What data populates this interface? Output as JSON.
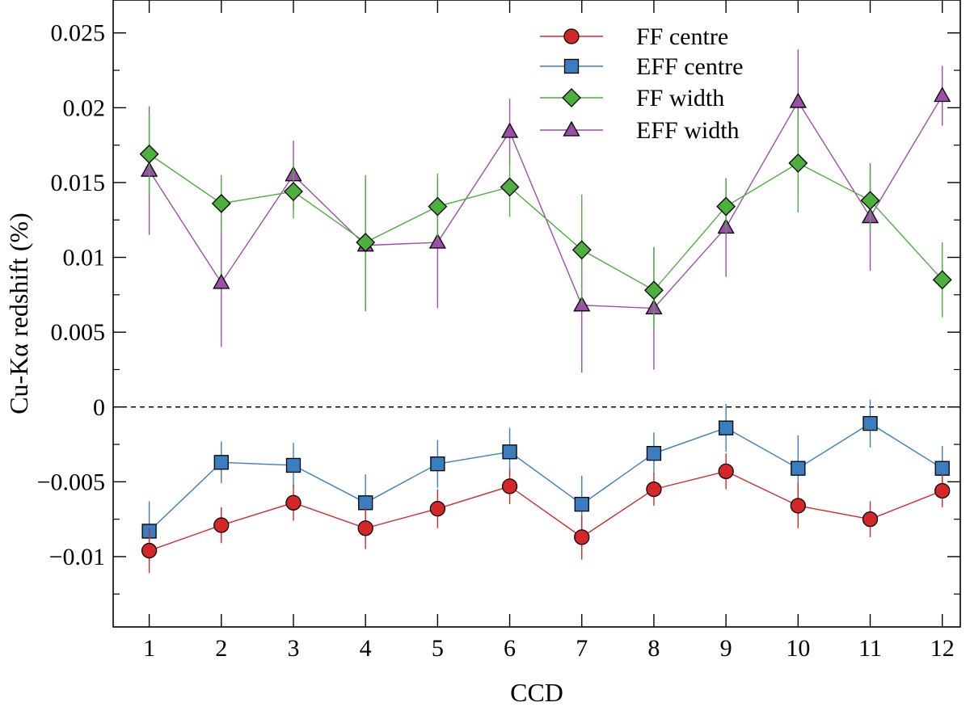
{
  "chart_data": {
    "type": "scatter",
    "title": "",
    "xlabel": "CCD",
    "ylabel": "Cu-Kα redshift (%)",
    "xlim": [
      0.5,
      12.25
    ],
    "ylim": [
      -0.0147,
      0.0272
    ],
    "x": [
      1,
      2,
      3,
      4,
      5,
      6,
      7,
      8,
      9,
      10,
      11,
      12
    ],
    "x_tick_labels": [
      "1",
      "2",
      "3",
      "4",
      "5",
      "6",
      "7",
      "8",
      "9",
      "10",
      "11",
      "12"
    ],
    "y_ticks": [
      -0.01,
      -0.005,
      0,
      0.005,
      0.01,
      0.015,
      0.02,
      0.025
    ],
    "y_tick_labels": [
      "−0.01",
      "−0.005",
      "0",
      "0.005",
      "0.01",
      "0.015",
      "0.02",
      "0.025"
    ],
    "y_minor_step": 0.0025,
    "zero_line": "dashed",
    "legend_position": "top-center",
    "series": [
      {
        "name": "FF centre",
        "color": "#d62728",
        "marker": "circle",
        "values": [
          -0.0096,
          -0.0079,
          -0.0064,
          -0.0081,
          -0.0068,
          -0.0053,
          -0.0087,
          -0.0055,
          -0.0043,
          -0.0066,
          -0.0075,
          -0.0056
        ],
        "errors": [
          0.0015,
          0.0012,
          0.0012,
          0.0014,
          0.0013,
          0.0012,
          0.0015,
          0.0011,
          0.0012,
          0.0015,
          0.0012,
          0.0011
        ]
      },
      {
        "name": "EFF centre",
        "color": "#3a7ebf",
        "marker": "square",
        "values": [
          -0.0083,
          -0.0037,
          -0.0039,
          -0.0064,
          -0.0038,
          -0.003,
          -0.0065,
          -0.0031,
          -0.0014,
          -0.0041,
          -0.0011,
          -0.0041
        ],
        "errors": [
          0.002,
          0.0014,
          0.0015,
          0.0019,
          0.0016,
          0.0016,
          0.0019,
          0.0014,
          0.0016,
          0.0022,
          0.0016,
          0.0015
        ]
      },
      {
        "name": "FF width",
        "color": "#4caf3e",
        "marker": "diamond",
        "values": [
          0.0169,
          0.0136,
          0.0144,
          0.011,
          0.0134,
          0.0147,
          0.0105,
          0.0078,
          0.0134,
          0.0163,
          0.0138,
          0.0085
        ],
        "errors": [
          0.0027,
          0.0019,
          0.0018,
          0.0045,
          0.0022,
          0.002,
          0.0037,
          0.0028,
          0.0018,
          0.0033,
          0.0021,
          0.0025
        ]
      },
      {
        "name": "EFF width",
        "color": "#9b4fa8",
        "marker": "triangle",
        "values": [
          0.0158,
          0.0083,
          0.0155,
          0.0108,
          0.011,
          0.0184,
          0.0068,
          0.0066,
          0.012,
          0.0204,
          0.0127,
          0.0208
        ],
        "errors": [
          0.0043,
          0.0043,
          0.0023,
          0.0044,
          0.0044,
          0.0022,
          0.0045,
          0.0041,
          0.0033,
          0.0035,
          0.0036,
          0.002
        ]
      }
    ]
  }
}
